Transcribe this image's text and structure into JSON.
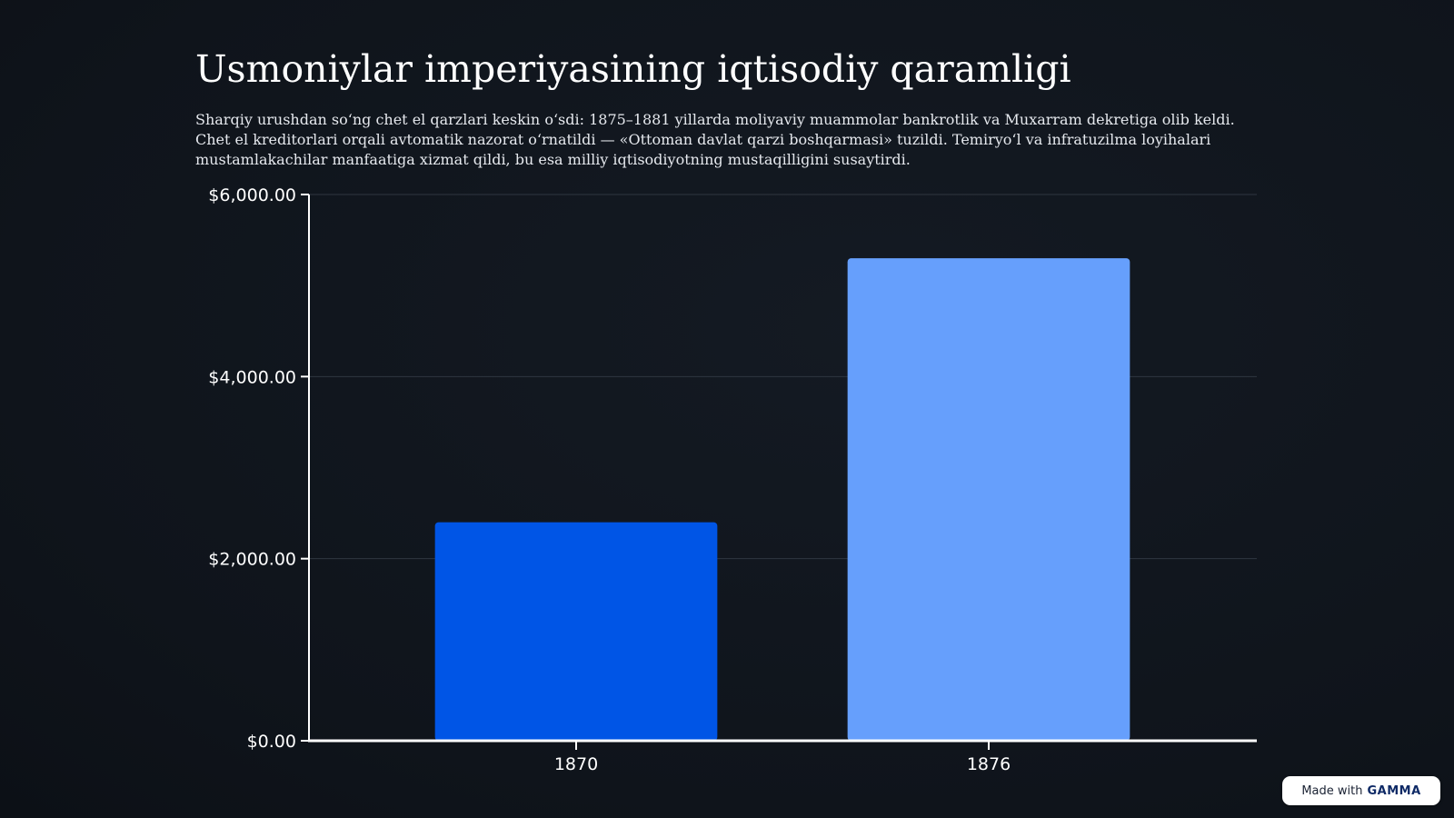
{
  "slide": {
    "title": "Usmoniylar imperiyasining iqtisodiy qaramligi",
    "description": "Sharqiy urushdan so‘ng chet el qarzlari keskin o‘sdi: 1875–1881 yillarda moliyaviy muammolar bankrotlik va Muxarram dekretiga olib keldi. Chet el kreditorlari orqali avtomatik nazorat o‘rnatildi — «Ottoman davlat qarzi boshqarmasi» tuzildi. Temiryo‘l va infratuzilma loyihalari mustamlakachilar manfaatiga xizmat qildi, bu esa milliy iqtisodiyotning mustaqilligini susaytirdi."
  },
  "chart_data": {
    "type": "bar",
    "title": "",
    "xlabel": "",
    "ylabel": "",
    "categories": [
      "1870",
      "1876"
    ],
    "values": [
      2400,
      5300
    ],
    "bar_colors": [
      "#0055e6",
      "#669ffc"
    ],
    "ylim": [
      0,
      6000
    ],
    "yticks": [
      0,
      2000,
      4000,
      6000
    ],
    "ytick_labels": [
      "$0.00",
      "$2,000.00",
      "$4,000.00",
      "$6,000.00"
    ],
    "grid": true,
    "legend": "none",
    "colors": {
      "axis": "#ffffff",
      "grid": "#2f3640",
      "text": "#ffffff"
    }
  },
  "badge": {
    "prefix": "Made with",
    "brand": "GAMMA"
  }
}
